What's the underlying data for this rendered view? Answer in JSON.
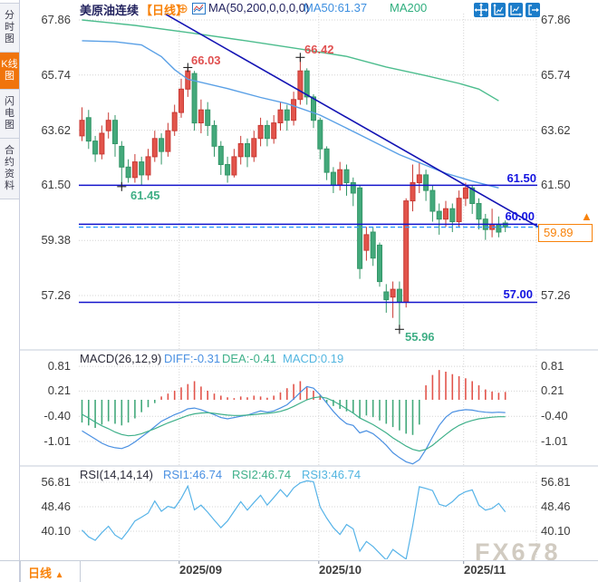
{
  "sidebar": {
    "tabs": [
      {
        "label": "分时图",
        "active": false
      },
      {
        "label": "K线图",
        "active": true
      },
      {
        "label": "闪电图",
        "active": false
      },
      {
        "label": "合约资料",
        "active": false
      }
    ]
  },
  "header": {
    "symbol": "美原油连续",
    "period_tag": "【日线】",
    "add_icon": "⊕",
    "ma_settings": "MA(50,200,0,0,0,0)",
    "ma50_label": "MA50:61.37",
    "ma200_label": "MA200",
    "toolbar_icon_names": [
      "pan-tool-icon",
      "y-axis-scale-icon",
      "x-axis-scale-icon",
      "exit-chart-icon"
    ]
  },
  "main_chart": {
    "y_axis_left": [
      "67.86",
      "65.74",
      "63.62",
      "61.50",
      "59.38",
      "57.26"
    ],
    "y_axis_right": [
      "67.86",
      "65.74",
      "63.62",
      "61.50",
      "57.26"
    ],
    "price_lines": [
      {
        "label": "61.50",
        "value": 61.5
      },
      {
        "label": "60.00",
        "value": 60.0
      },
      {
        "label": "57.00",
        "value": 57.0
      }
    ],
    "current_price": {
      "label": "59.89",
      "value": 59.89
    },
    "price_arrow": "▲",
    "annotations": [
      {
        "label": "66.03",
        "i": 16,
        "price": 66.03,
        "color": "red"
      },
      {
        "label": "66.42",
        "i": 33,
        "price": 66.42,
        "color": "red"
      },
      {
        "label": "61.45",
        "i": 6,
        "price": 61.45,
        "color": "green"
      },
      {
        "label": "55.96",
        "i": 48,
        "price": 55.96,
        "color": "green"
      }
    ]
  },
  "macd_panel": {
    "title": "MACD(26,12,9)",
    "diff_label": "DIFF:-0.31",
    "dea_label": "DEA:-0.41",
    "macd_label": "MACD:0.19",
    "y_axis": [
      "0.81",
      "0.21",
      "-0.40",
      "-1.01"
    ]
  },
  "rsi_panel": {
    "title": "RSI(14,14,14)",
    "rsi1_label": "RSI1:46.74",
    "rsi2_label": "RSI2:46.74",
    "rsi3_label": "RSI3:46.74",
    "y_axis": [
      "56.81",
      "48.46",
      "40.10"
    ]
  },
  "footer": {
    "period_label": "日线",
    "period_arrow": "▲",
    "dates": [
      "2025/09",
      "2025/10",
      "2025/11"
    ]
  },
  "watermark": "FX678",
  "colors": {
    "up": "#e2544b",
    "up_stroke": "#c93a34",
    "down": "#43a97b",
    "down_stroke": "#349668",
    "ma50": "#5aa0e6",
    "ma200": "#4dbd8e",
    "trend": "#1414b4",
    "price_line": "#1414cc",
    "dashed_line": "#2e9bff",
    "diff": "#4a90e2",
    "dea": "#3fb08a",
    "macd_text": "#52b5e0",
    "rsi_line": "#56b3e8",
    "accent_orange": "#f8820a",
    "label_blue": "#1414e0",
    "ann_red": "#e05050",
    "ann_green": "#3fae85",
    "grid": "#d4d4d4"
  },
  "chart_data": {
    "type": "candlestick",
    "title": "美原油连续 日线 (US Crude Oil Continuous, Daily)",
    "x_gridline_dates": [
      "2025/09",
      "2025/10",
      "2025/11"
    ],
    "x_gridline_indices": [
      14.7,
      35.8,
      57.7
    ],
    "price_axis_ticks": [
      67.86,
      65.74,
      63.62,
      61.5,
      59.38,
      57.26
    ],
    "horizontal_lines": [
      61.5,
      60.0,
      57.0
    ],
    "current_price": 59.89,
    "candles_ochl": [
      [
        63.4,
        64.0,
        64.5,
        63.2
      ],
      [
        64.1,
        63.2,
        64.4,
        62.9
      ],
      [
        63.2,
        62.7,
        63.4,
        62.4
      ],
      [
        62.7,
        63.5,
        63.8,
        62.5
      ],
      [
        63.6,
        64.0,
        64.3,
        63.3
      ],
      [
        64.0,
        63.1,
        64.2,
        62.6
      ],
      [
        63.0,
        62.2,
        63.2,
        61.45
      ],
      [
        62.2,
        61.8,
        62.5,
        61.6
      ],
      [
        61.8,
        62.4,
        62.7,
        61.6
      ],
      [
        62.4,
        61.9,
        62.6,
        61.5
      ],
      [
        61.9,
        62.6,
        62.9,
        61.7
      ],
      [
        62.6,
        63.3,
        63.6,
        62.4
      ],
      [
        63.3,
        62.8,
        63.5,
        62.3
      ],
      [
        62.8,
        63.6,
        63.9,
        62.6
      ],
      [
        63.6,
        64.3,
        64.6,
        63.4
      ],
      [
        64.3,
        65.2,
        65.6,
        64.1
      ],
      [
        65.2,
        65.9,
        66.03,
        64.9
      ],
      [
        65.8,
        63.9,
        65.9,
        63.6
      ],
      [
        63.9,
        64.4,
        64.8,
        63.5
      ],
      [
        64.4,
        63.8,
        64.7,
        63.4
      ],
      [
        63.8,
        63.0,
        64.0,
        62.6
      ],
      [
        63.0,
        62.3,
        63.2,
        61.9
      ],
      [
        62.3,
        61.9,
        62.6,
        61.6
      ],
      [
        61.9,
        62.6,
        62.9,
        61.8
      ],
      [
        62.6,
        63.1,
        63.4,
        62.3
      ],
      [
        63.1,
        62.6,
        63.3,
        62.2
      ],
      [
        62.6,
        63.3,
        63.6,
        62.4
      ],
      [
        63.3,
        63.8,
        64.1,
        63.0
      ],
      [
        63.8,
        63.3,
        64.0,
        63.0
      ],
      [
        63.3,
        63.9,
        64.2,
        63.1
      ],
      [
        63.9,
        64.4,
        64.7,
        63.6
      ],
      [
        64.4,
        64.0,
        64.6,
        63.6
      ],
      [
        64.0,
        64.8,
        65.1,
        63.8
      ],
      [
        64.8,
        65.9,
        66.42,
        64.6
      ],
      [
        65.9,
        64.9,
        66.0,
        64.6
      ],
      [
        64.9,
        64.0,
        65.0,
        63.7
      ],
      [
        64.0,
        62.9,
        64.1,
        62.5
      ],
      [
        62.9,
        62.0,
        63.0,
        61.7
      ],
      [
        62.0,
        61.5,
        62.2,
        61.2
      ],
      [
        61.5,
        62.1,
        62.4,
        61.3
      ],
      [
        62.1,
        61.6,
        62.3,
        61.1
      ],
      [
        61.6,
        61.2,
        61.8,
        60.7
      ],
      [
        61.4,
        58.3,
        61.5,
        57.9
      ],
      [
        59.0,
        59.6,
        59.9,
        58.6
      ],
      [
        59.7,
        58.7,
        59.9,
        58.4
      ],
      [
        59.2,
        57.8,
        59.3,
        57.6
      ],
      [
        57.4,
        57.1,
        57.7,
        56.6
      ],
      [
        57.2,
        57.5,
        57.8,
        56.4
      ],
      [
        57.5,
        57.0,
        57.8,
        55.96
      ],
      [
        57.0,
        60.9,
        61.0,
        56.8
      ],
      [
        60.9,
        61.6,
        62.3,
        60.5
      ],
      [
        61.6,
        61.9,
        62.4,
        61.2
      ],
      [
        61.9,
        61.3,
        62.1,
        60.9
      ],
      [
        61.3,
        60.5,
        61.5,
        60.1
      ],
      [
        60.5,
        60.2,
        60.8,
        59.6
      ],
      [
        60.2,
        60.6,
        60.9,
        59.9
      ],
      [
        60.6,
        60.1,
        60.8,
        59.7
      ],
      [
        60.1,
        61.0,
        61.3,
        59.9
      ],
      [
        61.0,
        61.4,
        61.6,
        60.7
      ],
      [
        61.4,
        60.8,
        61.5,
        60.4
      ],
      [
        60.8,
        60.2,
        61.0,
        59.8
      ],
      [
        60.2,
        59.8,
        60.4,
        59.4
      ],
      [
        59.8,
        60.0,
        60.6,
        59.5
      ],
      [
        60.0,
        59.7,
        60.3,
        59.5
      ],
      [
        60.05,
        59.89,
        60.15,
        59.7
      ]
    ],
    "ma50_keypoints": [
      [
        0,
        67.06
      ],
      [
        5,
        67.02
      ],
      [
        9,
        66.9
      ],
      [
        12,
        66.45
      ],
      [
        14,
        65.95
      ],
      [
        16,
        65.58
      ],
      [
        22,
        65.22
      ],
      [
        27,
        64.88
      ],
      [
        31,
        64.64
      ],
      [
        36,
        64.2
      ],
      [
        41,
        63.57
      ],
      [
        48,
        62.68
      ],
      [
        55,
        61.96
      ],
      [
        59,
        61.66
      ],
      [
        63,
        61.4
      ]
    ],
    "ma200_keypoints": [
      [
        0,
        67.86
      ],
      [
        8,
        67.65
      ],
      [
        16,
        67.38
      ],
      [
        25,
        67.05
      ],
      [
        33,
        66.74
      ],
      [
        40,
        66.46
      ],
      [
        46,
        66.05
      ],
      [
        52,
        65.72
      ],
      [
        57,
        65.42
      ],
      [
        60,
        65.2
      ],
      [
        63,
        64.75
      ]
    ],
    "trendline": [
      [
        12.5,
        68.1
      ],
      [
        69,
        59.9
      ]
    ],
    "macd": {
      "y_ticks": [
        0.81,
        0.21,
        -0.4,
        -1.01
      ],
      "histogram": [
        -0.55,
        -0.62,
        -0.68,
        -0.6,
        -0.52,
        -0.58,
        -0.62,
        -0.55,
        -0.45,
        -0.3,
        -0.18,
        -0.08,
        0.08,
        0.15,
        0.22,
        0.3,
        0.38,
        0.45,
        0.32,
        0.22,
        0.15,
        0.1,
        0.06,
        0.04,
        0.08,
        0.06,
        0.1,
        0.08,
        0.05,
        0.1,
        0.18,
        0.28,
        0.38,
        0.45,
        0.3,
        0.22,
        0.12,
        -0.08,
        -0.15,
        -0.22,
        -0.28,
        -0.33,
        -0.45,
        -0.38,
        -0.42,
        -0.5,
        -0.58,
        -0.66,
        -0.74,
        -0.82,
        -0.85,
        -0.6,
        0.35,
        0.6,
        0.72,
        0.68,
        0.62,
        0.57,
        0.52,
        0.45,
        0.35,
        0.25,
        0.2,
        0.17,
        0.19
      ],
      "diff": [
        -0.75,
        -0.85,
        -0.95,
        -1.05,
        -1.12,
        -1.16,
        -1.18,
        -1.12,
        -1.02,
        -0.9,
        -0.78,
        -0.65,
        -0.52,
        -0.44,
        -0.36,
        -0.3,
        -0.22,
        -0.2,
        -0.24,
        -0.3,
        -0.36,
        -0.43,
        -0.46,
        -0.43,
        -0.4,
        -0.37,
        -0.32,
        -0.27,
        -0.3,
        -0.27,
        -0.2,
        -0.12,
        0.02,
        0.18,
        0.32,
        0.28,
        0.12,
        -0.08,
        -0.28,
        -0.45,
        -0.58,
        -0.62,
        -0.8,
        -0.75,
        -0.82,
        -0.95,
        -1.1,
        -1.28,
        -1.4,
        -1.5,
        -1.55,
        -1.45,
        -1.2,
        -0.9,
        -0.62,
        -0.42,
        -0.3,
        -0.26,
        -0.24,
        -0.25,
        -0.28,
        -0.3,
        -0.31,
        -0.3,
        -0.31
      ],
      "dea": [
        -0.35,
        -0.44,
        -0.54,
        -0.63,
        -0.7,
        -0.78,
        -0.84,
        -0.87,
        -0.86,
        -0.82,
        -0.76,
        -0.7,
        -0.63,
        -0.56,
        -0.5,
        -0.44,
        -0.38,
        -0.34,
        -0.32,
        -0.31,
        -0.33,
        -0.35,
        -0.37,
        -0.38,
        -0.38,
        -0.37,
        -0.36,
        -0.34,
        -0.33,
        -0.31,
        -0.28,
        -0.23,
        -0.16,
        -0.08,
        0.0,
        0.05,
        0.07,
        0.04,
        -0.03,
        -0.12,
        -0.22,
        -0.32,
        -0.44,
        -0.52,
        -0.6,
        -0.7,
        -0.8,
        -0.92,
        -1.02,
        -1.12,
        -1.2,
        -1.24,
        -1.2,
        -1.1,
        -0.97,
        -0.84,
        -0.72,
        -0.62,
        -0.55,
        -0.5,
        -0.46,
        -0.44,
        -0.42,
        -0.41,
        -0.41
      ]
    },
    "rsi": {
      "y_ticks": [
        56.81,
        48.46,
        40.1
      ],
      "values": [
        40.5,
        38.2,
        37.0,
        39.6,
        41.8,
        38.8,
        37.4,
        40.3,
        43.6,
        44.9,
        46.3,
        50.4,
        46.9,
        48.6,
        48.0,
        51.3,
        55.5,
        47.4,
        49.0,
        46.6,
        43.9,
        41.3,
        43.6,
        46.9,
        50.2,
        47.3,
        49.9,
        52.4,
        49.0,
        51.6,
        54.3,
        51.9,
        54.9,
        56.6,
        57.3,
        57.0,
        48.4,
        44.6,
        41.3,
        39.0,
        42.4,
        40.9,
        33.3,
        36.6,
        34.9,
        32.6,
        30.3,
        33.9,
        32.2,
        30.6,
        42.0,
        55.3,
        54.7,
        54.0,
        49.3,
        48.6,
        50.2,
        52.4,
        53.6,
        54.2,
        49.0,
        47.3,
        47.9,
        49.6,
        46.74
      ]
    }
  }
}
